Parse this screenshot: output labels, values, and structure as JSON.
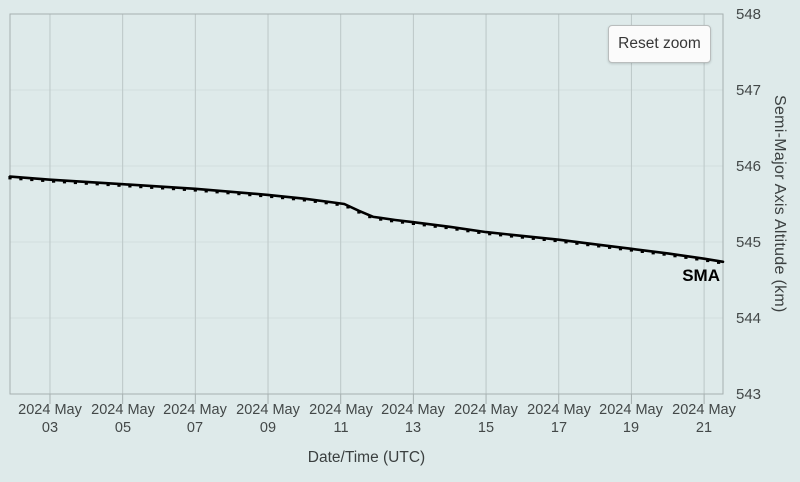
{
  "colors": {
    "background": "#deeaea",
    "plot_border": "#a6b0b0",
    "grid_vertical": "#bcc7c7",
    "grid_horizontal": "#d3dfdf",
    "axis_line": "#a6b0b0",
    "series_line": "#000000",
    "label_text": "#434848",
    "button_bg": "#fbfbfb",
    "button_border": "#b9bdbd"
  },
  "reset_button": {
    "label": "Reset zoom"
  },
  "series_label": "SMA",
  "chart_data": {
    "type": "line",
    "title": "",
    "xlabel": "Date/Time (UTC)",
    "ylabel": "Semi-Major Axis Altitude (km)",
    "ylim": [
      543,
      548
    ],
    "yticks": [
      548,
      547,
      546,
      545,
      544,
      543
    ],
    "grid": "vertical-strong, horizontal-faint",
    "legend_position": "none",
    "y_axis_side": "right",
    "xlim_day_of_may_2024": [
      1.9,
      21.52
    ],
    "xticks": [
      {
        "day": 3,
        "line1": "2024 May",
        "line2": "03"
      },
      {
        "day": 5,
        "line1": "2024 May",
        "line2": "05"
      },
      {
        "day": 7,
        "line1": "2024 May",
        "line2": "07"
      },
      {
        "day": 9,
        "line1": "2024 May",
        "line2": "09"
      },
      {
        "day": 11,
        "line1": "2024 May",
        "line2": "11"
      },
      {
        "day": 13,
        "line1": "2024 May",
        "line2": "13"
      },
      {
        "day": 15,
        "line1": "2024 May",
        "line2": "15"
      },
      {
        "day": 17,
        "line1": "2024 May",
        "line2": "17"
      },
      {
        "day": 19,
        "line1": "2024 May",
        "line2": "19"
      },
      {
        "day": 21,
        "line1": "2024 May",
        "line2": "21"
      }
    ],
    "series": [
      {
        "name": "SMA",
        "color": "#000000",
        "points_day_of_may_2024_vs_km": [
          [
            1.9,
            545.86
          ],
          [
            3,
            545.82
          ],
          [
            5,
            545.76
          ],
          [
            7,
            545.7
          ],
          [
            9,
            545.62
          ],
          [
            10,
            545.57
          ],
          [
            10.8,
            545.52
          ],
          [
            11.1,
            545.5
          ],
          [
            11.5,
            545.41
          ],
          [
            11.9,
            545.33
          ],
          [
            12.5,
            545.29
          ],
          [
            13,
            545.26
          ],
          [
            14,
            545.2
          ],
          [
            15,
            545.13
          ],
          [
            16,
            545.08
          ],
          [
            17,
            545.03
          ],
          [
            18,
            544.97
          ],
          [
            19,
            544.91
          ],
          [
            20,
            544.85
          ],
          [
            21,
            544.78
          ],
          [
            21.52,
            544.74
          ]
        ]
      }
    ]
  }
}
